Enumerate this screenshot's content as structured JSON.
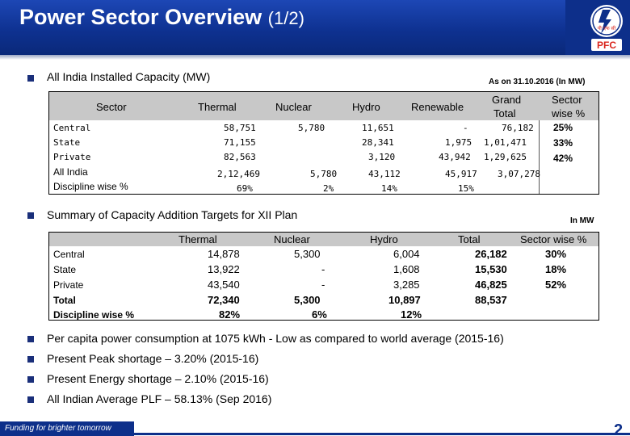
{
  "header": {
    "title_main": "Power Sector Overview",
    "title_sub": "(1/2)",
    "logo_text": "PFC",
    "logo_hindi": "पी एफ सी"
  },
  "section1": {
    "heading": "All India Installed Capacity (MW)",
    "as_on": "As on 31.10.2016 (In MW)",
    "headers": {
      "sector": "Sector",
      "thermal": "Thermal",
      "nuclear": "Nuclear",
      "hydro": "Hydro",
      "renewable": "Renewable",
      "grand_total_1": "Grand",
      "grand_total_2": "Total",
      "sector_wise_1": "Sector",
      "sector_wise_2": "wise %"
    },
    "rows": [
      {
        "sector": "Central",
        "thermal": "58,751",
        "nuclear": "5,780",
        "hydro": "11,651",
        "renewable": "-",
        "grand_total": "76,182",
        "sector_wise": "25%"
      },
      {
        "sector": "State",
        "thermal": "71,155",
        "nuclear": "",
        "hydro": "28,341",
        "renewable": "1,975",
        "grand_total": "1,01,471",
        "sector_wise": "33%"
      },
      {
        "sector": "Private",
        "thermal": "82,563",
        "nuclear": "",
        "hydro": "3,120",
        "renewable": "43,942",
        "grand_total": "1,29,625",
        "sector_wise": "42%"
      },
      {
        "sector": "All India",
        "thermal": "2,12,469",
        "nuclear": "5,780",
        "hydro": "43,112",
        "renewable": "45,917",
        "grand_total": "3,07,278",
        "sector_wise": ""
      },
      {
        "sector": "Discipline wise %",
        "thermal": "69%",
        "nuclear": "2%",
        "hydro": "14%",
        "renewable": "15%",
        "grand_total": "",
        "sector_wise": ""
      }
    ]
  },
  "section2": {
    "heading": "Summary of Capacity Addition Targets for XII Plan",
    "unit": "In MW",
    "headers": {
      "thermal": "Thermal",
      "nuclear": "Nuclear",
      "hydro": "Hydro",
      "total": "Total",
      "sector_wise": "Sector wise %"
    },
    "rows": [
      {
        "sector": "Central",
        "thermal": "14,878",
        "nuclear": "5,300",
        "hydro": "6,004",
        "total": "26,182",
        "sector_wise": "30%"
      },
      {
        "sector": "State",
        "thermal": "13,922",
        "nuclear": "-",
        "hydro": "1,608",
        "total": "15,530",
        "sector_wise": "18%"
      },
      {
        "sector": "Private",
        "thermal": "43,540",
        "nuclear": "-",
        "hydro": "3,285",
        "total": "46,825",
        "sector_wise": "52%"
      },
      {
        "sector": "Total",
        "thermal": "72,340",
        "nuclear": "5,300",
        "hydro": "10,897",
        "total": "88,537",
        "sector_wise": ""
      },
      {
        "sector": "Discipline wise %",
        "thermal": "82%",
        "nuclear": "6%",
        "hydro": "12%",
        "total": "",
        "sector_wise": ""
      }
    ]
  },
  "bullets": [
    "Per capita power consumption at 1075 kWh - Low as compared to world average (2015-16)",
    "Present Peak shortage – 3.20% (2015-16)",
    "Present Energy shortage – 2.10% (2015-16)",
    "All Indian Average PLF – 58.13% (Sep 2016)"
  ],
  "footer": {
    "tagline": "Funding for brighter tomorrow",
    "page_number": "2"
  },
  "colors": {
    "header_blue": "#0d2f8a",
    "table_header_grey": "#c8c8c8",
    "logo_red": "#d9251c"
  }
}
